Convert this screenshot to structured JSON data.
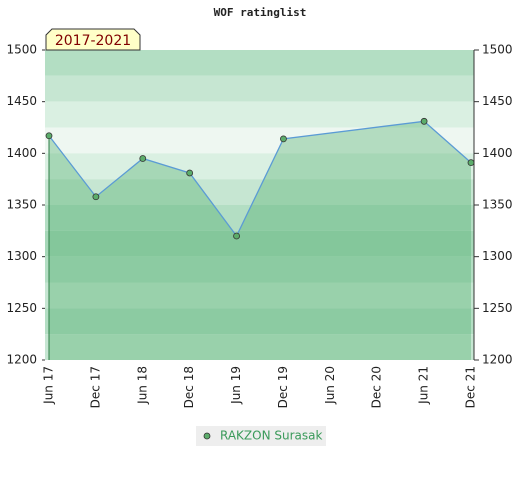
{
  "chart_data": {
    "type": "line",
    "title": "WOF ratinglist",
    "annotation": "2017-2021",
    "categories": [
      "Jun 17",
      "Dec 17",
      "Jun 18",
      "Dec 18",
      "Jun 19",
      "Dec 19",
      "Jun 20",
      "Dec 20",
      "Jun 21",
      "Dec 21"
    ],
    "series": [
      {
        "name": "RAKZON Surasak",
        "color": "#5b9bd5",
        "x": [
          "Jun 17",
          "Dec 17",
          "Jun 18",
          "Dec 18",
          "Jun 19",
          "Dec 19",
          "Jun 21",
          "Dec 21"
        ],
        "values": [
          1417,
          1358,
          1395,
          1381,
          1320,
          1414,
          1431,
          1391
        ]
      }
    ],
    "ylim": [
      1200,
      1500
    ],
    "yticks": [
      1200,
      1250,
      1300,
      1350,
      1400,
      1450,
      1500
    ],
    "y2lim": [
      1200,
      1500
    ],
    "y2ticks": [
      1200,
      1250,
      1300,
      1350,
      1400,
      1450,
      1500
    ]
  }
}
